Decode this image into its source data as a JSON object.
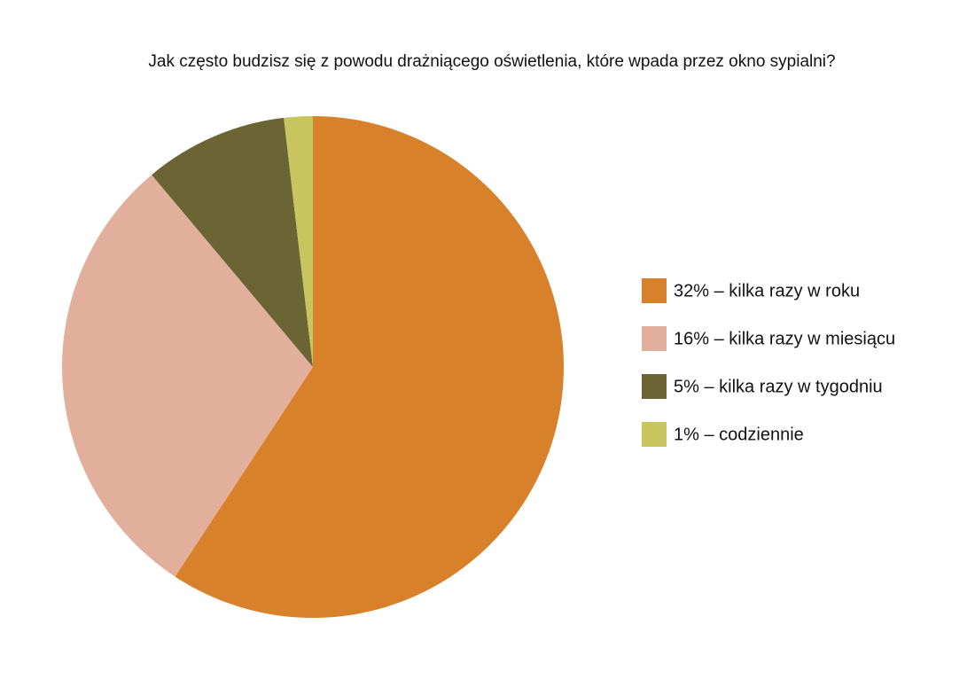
{
  "chart_data": {
    "type": "pie",
    "title": "Jak często budzisz się z powodu drażniącego oświetlenia, które wpada przez okno sypialni?",
    "categories": [
      "32% – kilka razy w roku",
      "16% – kilka razy w miesiącu",
      "5% – kilka razy w tygodniu",
      "1% – codziennie"
    ],
    "values": [
      32,
      16,
      5,
      1
    ],
    "colors": [
      "#d7812b",
      "#e2af9c",
      "#6b6535",
      "#c6c55e"
    ],
    "legend": "right"
  }
}
